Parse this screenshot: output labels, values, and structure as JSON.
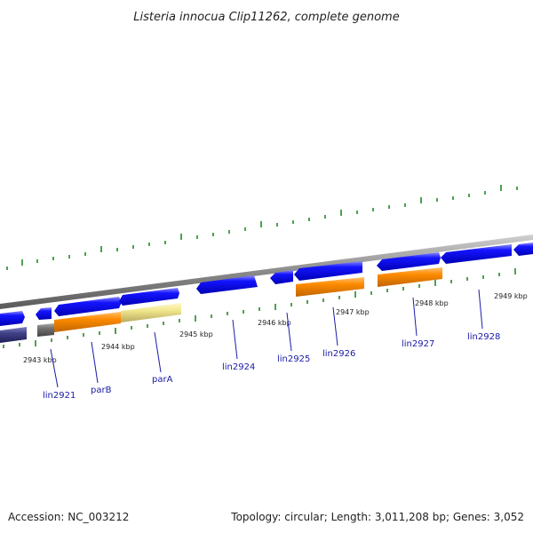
{
  "title": "Listeria innocua Clip11262, complete genome",
  "footer": {
    "accession_label": "Accession:",
    "accession": "NC_003212",
    "topology_label": "Topology:",
    "topology": "circular",
    "length_label": "Length:",
    "length": "3,011,208 bp",
    "genes_label": "Genes:",
    "genes": "3,052"
  },
  "kbp_labels": [
    "2943 kbp",
    "2944 kbp",
    "2945 kbp",
    "2946 kbp",
    "2947 kbp",
    "2948 kbp",
    "2949 kbp"
  ],
  "gene_labels": [
    "lin2921",
    "parB",
    "parA",
    "lin2924",
    "lin2925",
    "lin2926",
    "lin2927",
    "lin2928"
  ],
  "colors": {
    "cds": "#0000e6",
    "orange": "#ff8c00",
    "pale": "#f0e68c",
    "gray": "#6e6e6e",
    "navy": "#3b3b80",
    "backbone": "#8a8a8a",
    "tick": "#228b22",
    "label": "#1a1aa8"
  }
}
